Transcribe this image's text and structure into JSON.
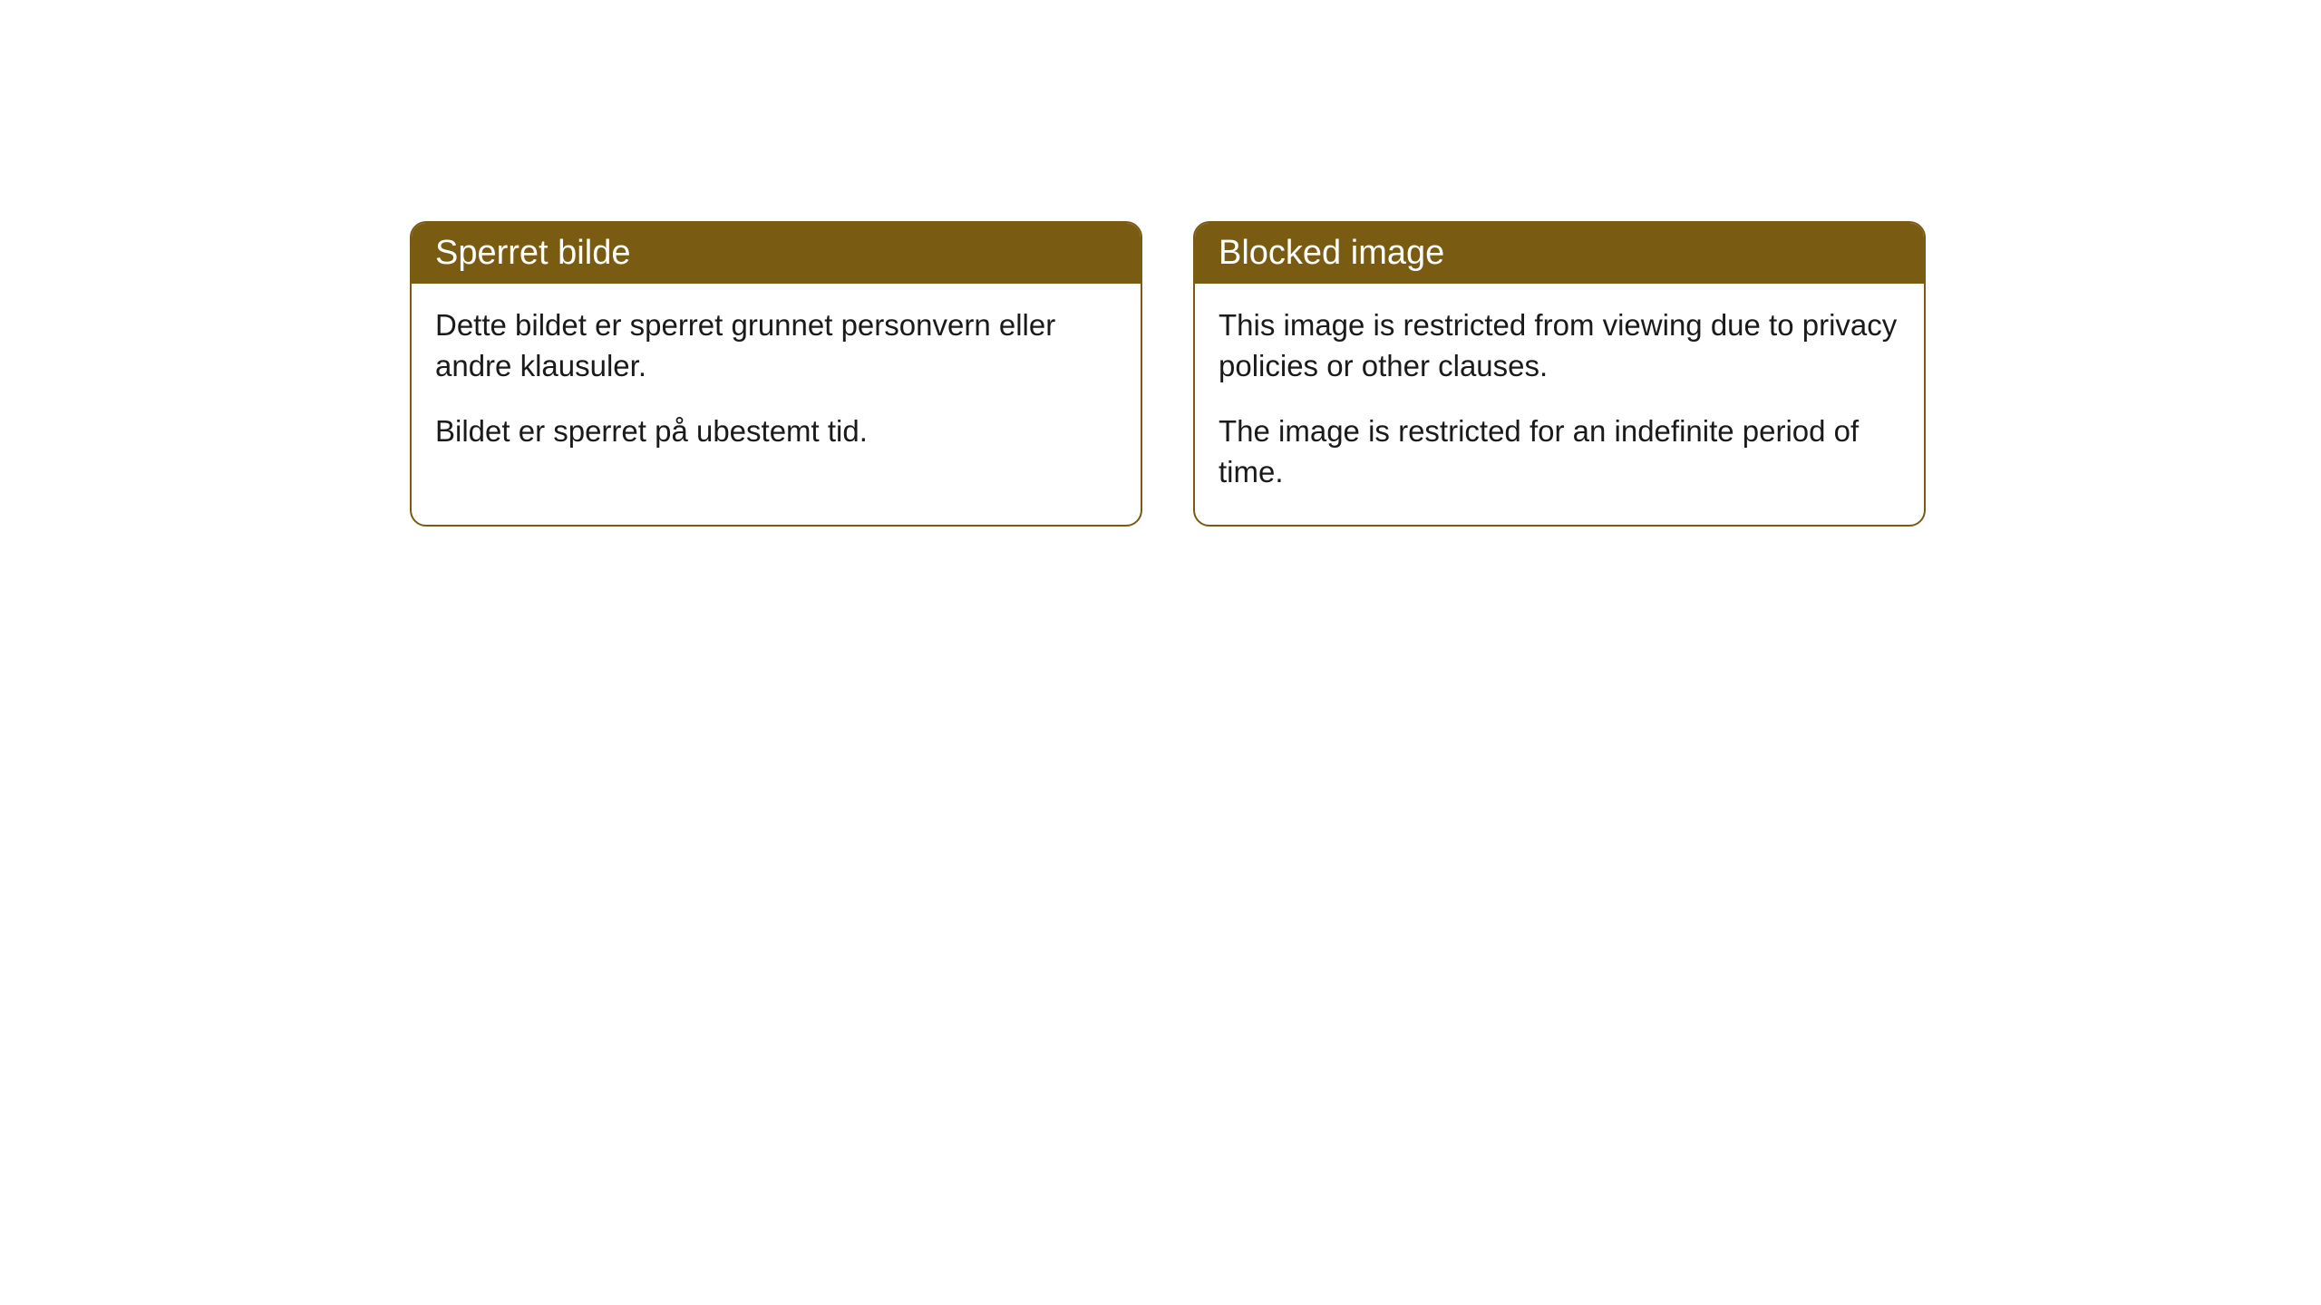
{
  "cards": [
    {
      "title": "Sperret bilde",
      "paragraph1": "Dette bildet er sperret grunnet personvern eller andre klausuler.",
      "paragraph2": "Bildet er sperret på ubestemt tid."
    },
    {
      "title": "Blocked image",
      "paragraph1": "This image is restricted from viewing due to privacy policies or other clauses.",
      "paragraph2": "The image is restricted for an indefinite period of time."
    }
  ],
  "styling": {
    "header_background": "#7a5b12",
    "header_text_color": "#ffffff",
    "border_color": "#7a5b12",
    "body_text_color": "#1a1a1a",
    "background_color": "#ffffff",
    "border_radius": 18,
    "header_fontsize": 38,
    "body_fontsize": 33
  }
}
